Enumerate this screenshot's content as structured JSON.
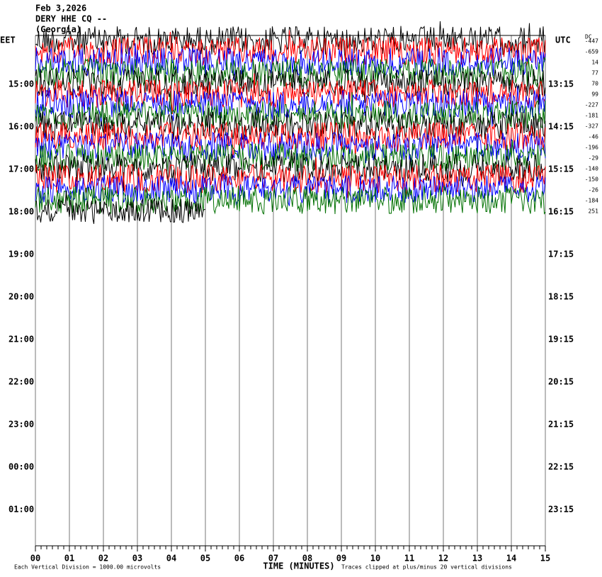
{
  "header": {
    "date": "Feb 3,2026",
    "station": "DERY HHE CQ --",
    "location": "(Georgia)"
  },
  "left_axis": {
    "label": "EET",
    "times": [
      "15:00",
      "16:00",
      "17:00",
      "18:00",
      "19:00",
      "20:00",
      "21:00",
      "22:00",
      "23:00",
      "00:00",
      "01:00"
    ]
  },
  "right_axis": {
    "label": "UTC",
    "times": [
      "13:15",
      "14:15",
      "15:15",
      "16:15",
      "17:15",
      "18:15",
      "19:15",
      "20:15",
      "21:15",
      "22:15",
      "23:15"
    ]
  },
  "dc_offsets": {
    "label": "DC",
    "values": [
      -447,
      -659,
      14,
      77,
      70,
      99,
      -227,
      -181,
      -327,
      -46,
      -196,
      -29,
      -140,
      -150,
      -26,
      -184,
      251
    ]
  },
  "trace_colors": [
    "#000000",
    "#ff0000",
    "#0000ff",
    "#007000"
  ],
  "x_axis": {
    "label": "TIME (MINUTES)",
    "ticks": [
      "00",
      "01",
      "02",
      "03",
      "04",
      "05",
      "06",
      "07",
      "08",
      "09",
      "10",
      "11",
      "12",
      "13",
      "14",
      "15"
    ]
  },
  "footer": {
    "scale_note": "Each Vertical Division = 1000.00 microvolts",
    "clip_note": "Traces clipped at plus/minus 20 vertical divisions"
  }
}
